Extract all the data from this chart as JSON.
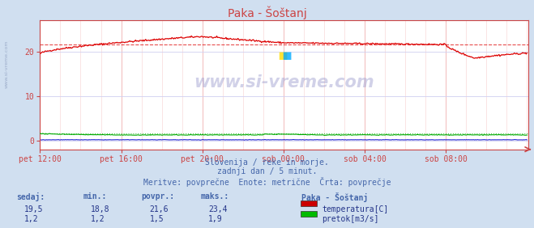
{
  "title": "Paka - Šoštanj",
  "bg_color": "#d0dff0",
  "plot_bg_color": "#ffffff",
  "grid_v_color": "#f0b0b0",
  "grid_h_color": "#d0d0f0",
  "tick_label_color": "#4444aa",
  "text_color": "#4466aa",
  "axis_color": "#cc4444",
  "xticklabels": [
    "pet 12:00",
    "pet 16:00",
    "pet 20:00",
    "sob 00:00",
    "sob 04:00",
    "sob 08:00"
  ],
  "xtick_positions": [
    0,
    96,
    192,
    288,
    384,
    480
  ],
  "yticks": [
    0,
    10,
    20
  ],
  "ylim": [
    -2,
    27
  ],
  "xlim": [
    0,
    578
  ],
  "avg_temp": 21.6,
  "avg_flow": 1.5,
  "watermark": "www.si-vreme.com",
  "subtitle1": "Slovenija / reke in morje.",
  "subtitle2": "zadnji dan / 5 minut.",
  "subtitle3": "Meritve: povprečne  Enote: metrične  Črta: povprečje",
  "legend_title": "Paka - Šoštanj",
  "legend_items": [
    "temperatura[C]",
    "pretok[m3/s]"
  ],
  "legend_colors": [
    "#cc0000",
    "#00bb00"
  ],
  "table_headers": [
    "sedaj:",
    "min.:",
    "povpr.:",
    "maks.:"
  ],
  "table_row1": [
    "19,5",
    "18,8",
    "21,6",
    "23,4"
  ],
  "table_row2": [
    "1,2",
    "1,2",
    "1,5",
    "1,9"
  ],
  "temp_color": "#dd0000",
  "flow_color": "#00aa00",
  "height_color": "#0000cc",
  "n_points": 577
}
